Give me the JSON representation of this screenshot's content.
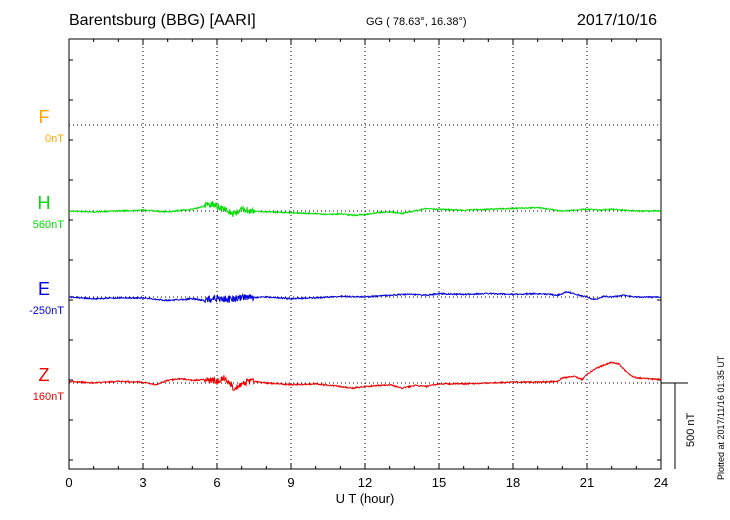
{
  "header": {
    "station": "Barentsburg (BBG)  [AARI]",
    "coords": "GG ( 78.63°,  16.38°)",
    "date": "2017/10/16"
  },
  "chart_data": {
    "type": "line",
    "xlabel": "U T (hour)",
    "xlim": [
      0,
      24
    ],
    "x_ticks": [
      "0",
      "3",
      "6",
      "9",
      "12",
      "15",
      "18",
      "21",
      "24"
    ],
    "x_tick_values": [
      0,
      3,
      6,
      9,
      12,
      15,
      18,
      21,
      24
    ],
    "scale_bar": {
      "label": "500 nT",
      "value_nT": 500
    },
    "plotted_note": "Plotted at 2017/11/16 01:35 UT",
    "grid": true,
    "components": [
      {
        "name": "F",
        "baseline": "0nT",
        "color": "#FFA500",
        "values_nT": []
      },
      {
        "name": "H",
        "baseline": "560nT",
        "color": "#00DD00",
        "keypoints_nT": [
          [
            0,
            0
          ],
          [
            1,
            -5
          ],
          [
            2,
            0
          ],
          [
            3,
            5
          ],
          [
            4,
            -5
          ],
          [
            5,
            10
          ],
          [
            5.8,
            40
          ],
          [
            6.3,
            10
          ],
          [
            6.7,
            -20
          ],
          [
            7,
            10
          ],
          [
            7.5,
            0
          ],
          [
            8,
            -5
          ],
          [
            9,
            -10
          ],
          [
            10,
            -15
          ],
          [
            10.5,
            -20
          ],
          [
            11,
            -15
          ],
          [
            11.5,
            -25
          ],
          [
            12,
            -20
          ],
          [
            12.5,
            -10
          ],
          [
            13,
            -5
          ],
          [
            13.5,
            -15
          ],
          [
            14,
            0
          ],
          [
            14.5,
            15
          ],
          [
            15,
            10
          ],
          [
            16,
            5
          ],
          [
            17,
            10
          ],
          [
            18,
            15
          ],
          [
            19,
            20
          ],
          [
            19.5,
            10
          ],
          [
            20,
            0
          ],
          [
            20.5,
            5
          ],
          [
            21,
            10
          ],
          [
            21.5,
            5
          ],
          [
            22,
            10
          ],
          [
            23,
            0
          ],
          [
            24,
            0
          ]
        ],
        "burst_hours": [
          5.5,
          7.5
        ]
      },
      {
        "name": "E",
        "baseline": "-250nT",
        "color": "#0000DD",
        "keypoints_nT": [
          [
            0,
            0
          ],
          [
            1,
            -10
          ],
          [
            2,
            -5
          ],
          [
            3,
            -5
          ],
          [
            4,
            -20
          ],
          [
            5,
            -10
          ],
          [
            5.5,
            -20
          ],
          [
            6,
            -5
          ],
          [
            6.5,
            -15
          ],
          [
            7,
            -5
          ],
          [
            8,
            0
          ],
          [
            9,
            -10
          ],
          [
            10,
            -5
          ],
          [
            11,
            5
          ],
          [
            12,
            0
          ],
          [
            12.5,
            5
          ],
          [
            13,
            10
          ],
          [
            13.5,
            15
          ],
          [
            14,
            15
          ],
          [
            14.5,
            10
          ],
          [
            15,
            20
          ],
          [
            16,
            15
          ],
          [
            17,
            20
          ],
          [
            18,
            15
          ],
          [
            19,
            20
          ],
          [
            19.5,
            15
          ],
          [
            19.8,
            10
          ],
          [
            20.2,
            30
          ],
          [
            20.7,
            10
          ],
          [
            21,
            0
          ],
          [
            21.3,
            -15
          ],
          [
            21.7,
            5
          ],
          [
            22,
            0
          ],
          [
            22.5,
            10
          ],
          [
            23,
            0
          ],
          [
            24,
            0
          ]
        ],
        "burst_hours": [
          5.5,
          7.5
        ]
      },
      {
        "name": "Z",
        "baseline": "160nT",
        "color": "#EE0000",
        "keypoints_nT": [
          [
            0,
            10
          ],
          [
            1,
            0
          ],
          [
            2,
            10
          ],
          [
            3,
            5
          ],
          [
            3.5,
            -10
          ],
          [
            4,
            15
          ],
          [
            4.5,
            25
          ],
          [
            5,
            15
          ],
          [
            5.5,
            20
          ],
          [
            6,
            10
          ],
          [
            6.3,
            30
          ],
          [
            6.7,
            -30
          ],
          [
            7,
            0
          ],
          [
            7.5,
            10
          ],
          [
            8,
            0
          ],
          [
            9,
            -10
          ],
          [
            10,
            -5
          ],
          [
            11,
            -20
          ],
          [
            11.5,
            -30
          ],
          [
            12,
            -20
          ],
          [
            12.5,
            -15
          ],
          [
            13,
            -10
          ],
          [
            13.5,
            -30
          ],
          [
            14,
            -15
          ],
          [
            14.5,
            -20
          ],
          [
            15,
            -5
          ],
          [
            16,
            -5
          ],
          [
            17,
            0
          ],
          [
            18,
            5
          ],
          [
            19,
            5
          ],
          [
            19.8,
            10
          ],
          [
            20,
            30
          ],
          [
            20.5,
            40
          ],
          [
            20.8,
            20
          ],
          [
            21,
            50
          ],
          [
            21.3,
            80
          ],
          [
            21.6,
            100
          ],
          [
            22,
            120
          ],
          [
            22.3,
            110
          ],
          [
            22.7,
            50
          ],
          [
            23,
            30
          ],
          [
            24,
            20
          ]
        ],
        "burst_hours": [
          5.5,
          7.5
        ]
      }
    ]
  }
}
